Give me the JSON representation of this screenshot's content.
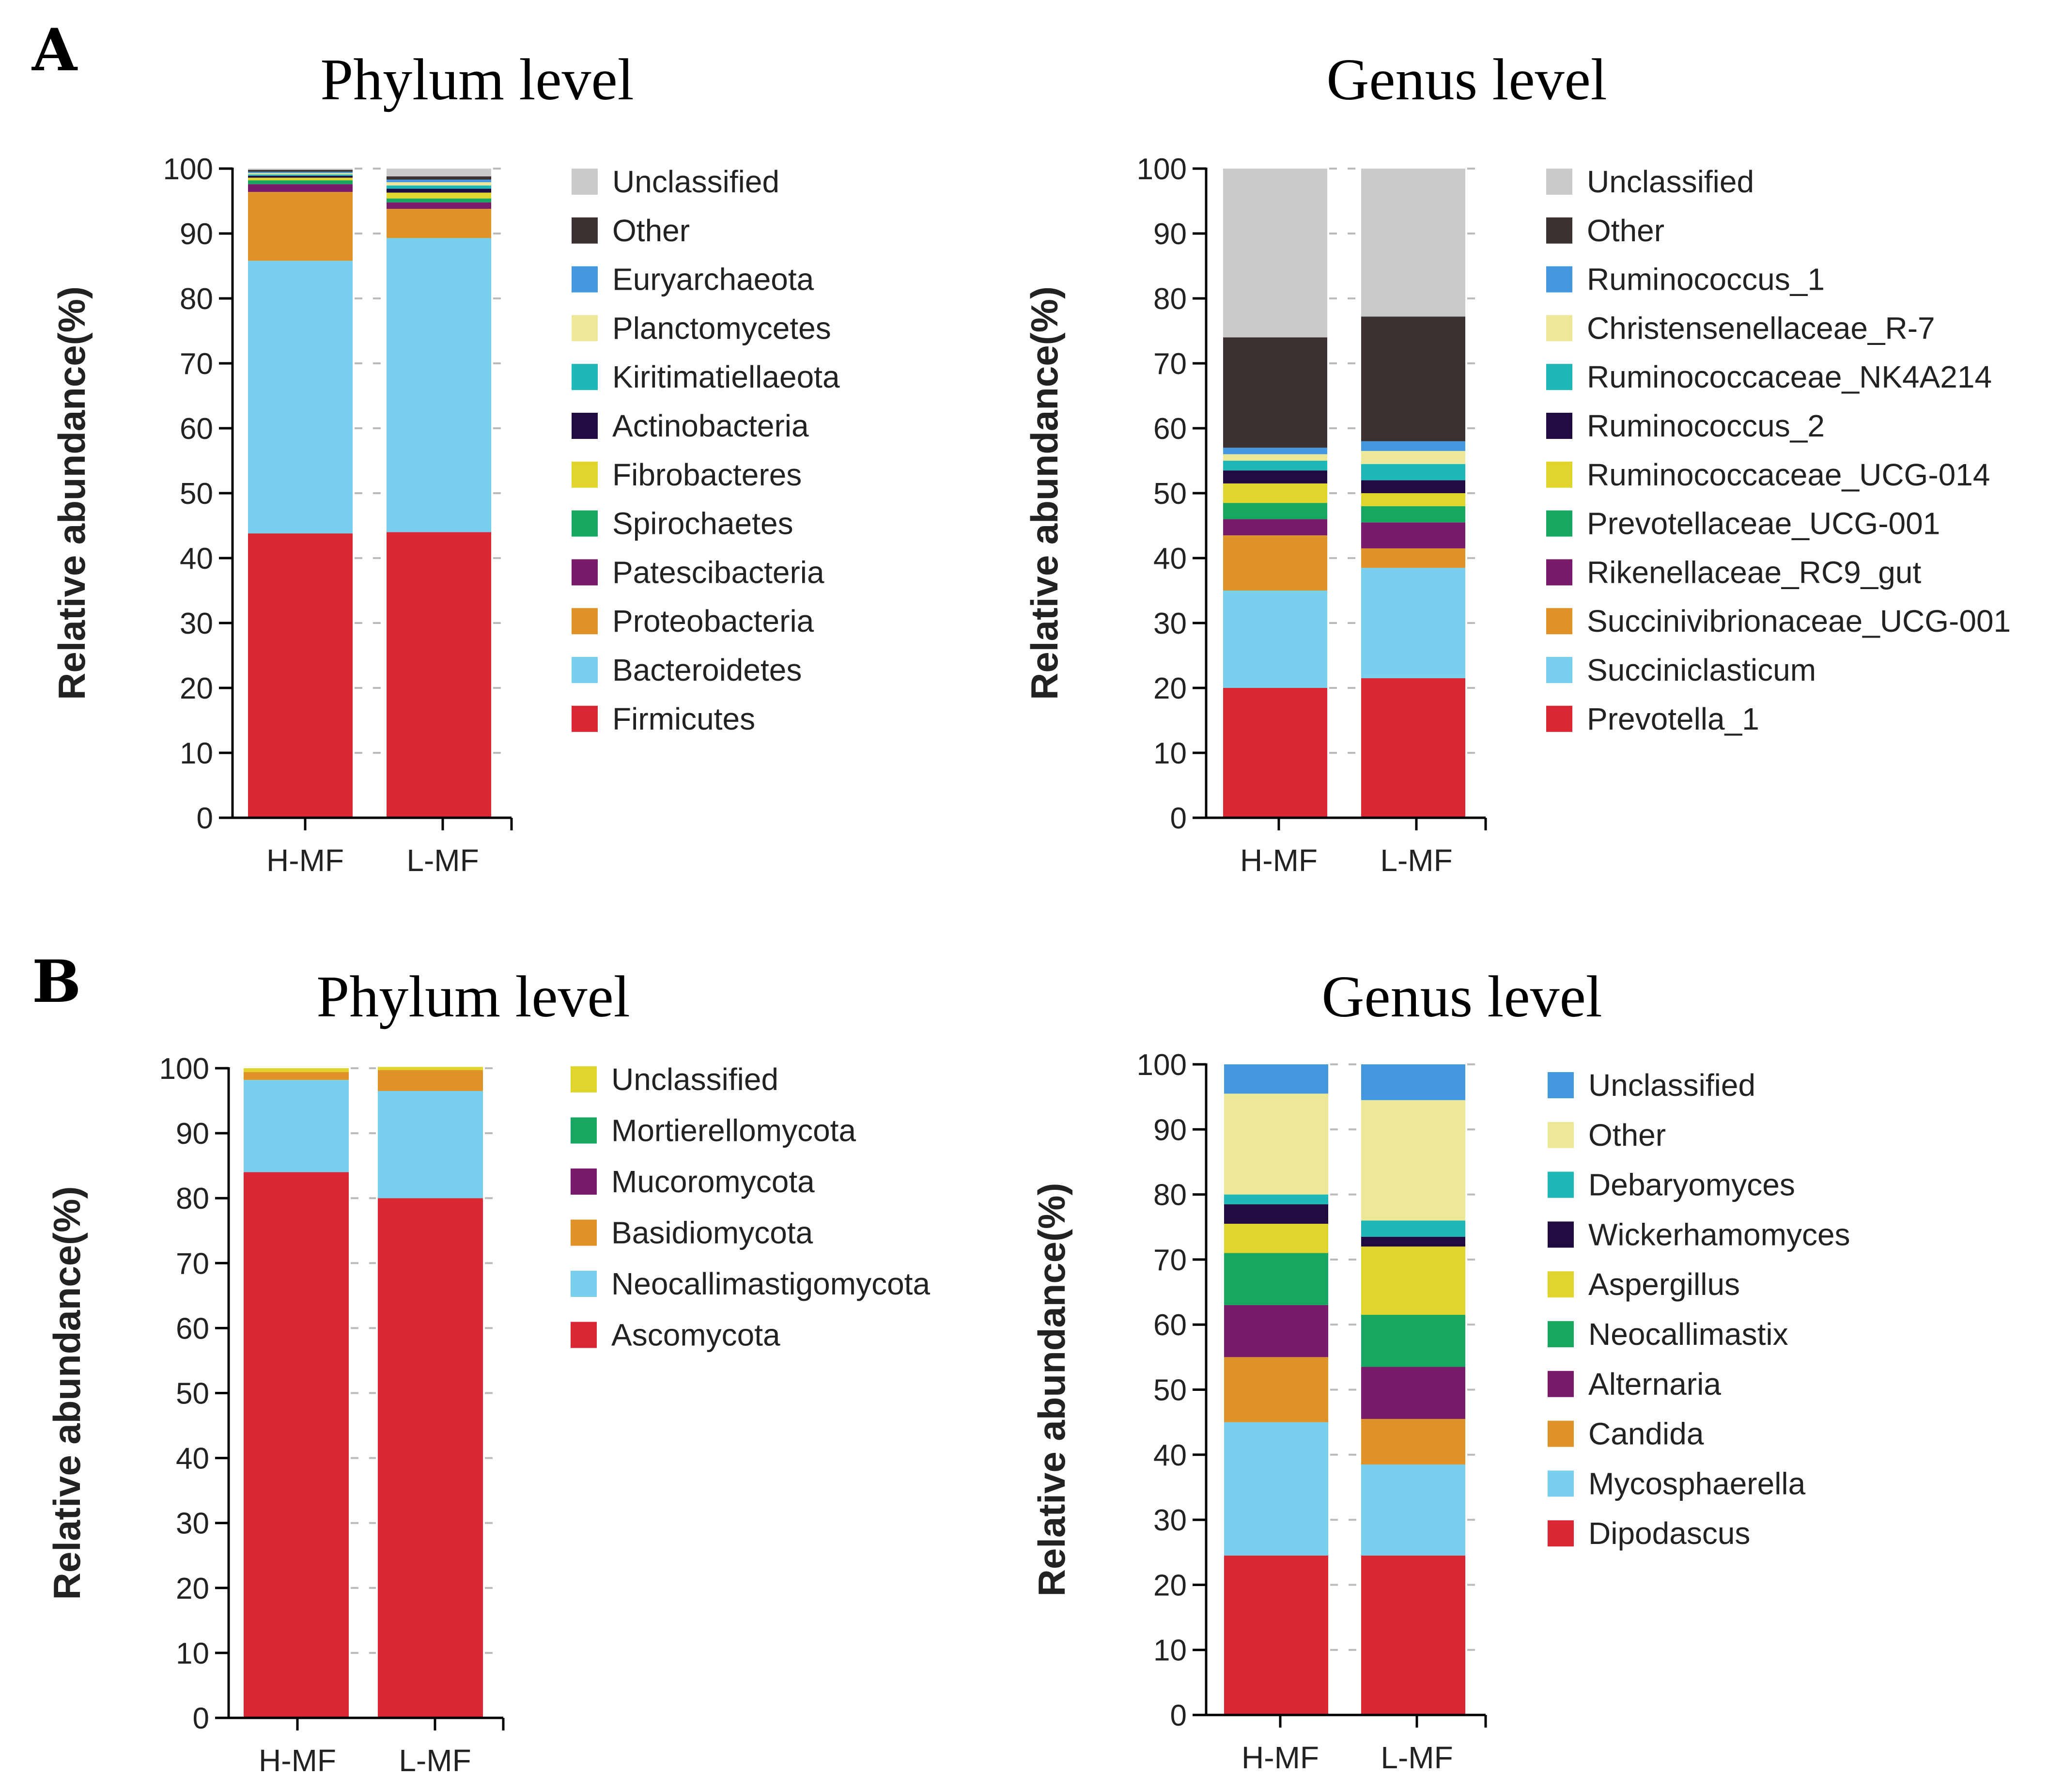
{
  "colors": {
    "unclassified_gray": "#c8c9c9",
    "other_dark": "#3b3130",
    "blue": "#4498df",
    "pale_yellow": "#ede898",
    "teal": "#1fb8b8",
    "dark_purple": "#200c41",
    "yellow": "#e0d42d",
    "green": "#18a760",
    "purple": "#7a1a6b",
    "orange": "#df9227",
    "light_blue": "#78d0ee",
    "red": "#d92833"
  },
  "chart_data": [
    {
      "id": "A-phylum",
      "panel_label": "A",
      "type": "bar",
      "stacked": true,
      "title": "Phylum level",
      "ylabel": "Relative abundance(%)",
      "ylim": [
        0,
        100
      ],
      "yticks": [
        "0",
        "10",
        "20",
        "30",
        "40",
        "50",
        "60",
        "70",
        "80",
        "90",
        "100"
      ],
      "categories": [
        "H-MF",
        "L-MF"
      ],
      "legend_position": "right",
      "series": [
        {
          "name": "Firmicutes",
          "color": "#d92833",
          "values": [
            43.8,
            44.0
          ]
        },
        {
          "name": "Bacteroidetes",
          "color": "#78d0ee",
          "values": [
            42.0,
            45.3
          ]
        },
        {
          "name": "Proteobacteria",
          "color": "#df9227",
          "values": [
            10.6,
            4.5
          ]
        },
        {
          "name": "Patescibacteria",
          "color": "#7a1a6b",
          "values": [
            1.2,
            1.0
          ]
        },
        {
          "name": "Spirochaetes",
          "color": "#18a760",
          "values": [
            0.6,
            0.6
          ]
        },
        {
          "name": "Fibrobacteres",
          "color": "#e0d42d",
          "values": [
            0.4,
            0.9
          ]
        },
        {
          "name": "Actinobacteria",
          "color": "#200c41",
          "values": [
            0.3,
            0.6
          ]
        },
        {
          "name": "Kiritimatiellaeota",
          "color": "#1fb8b8",
          "values": [
            0.2,
            0.5
          ]
        },
        {
          "name": "Planctomycetes",
          "color": "#ede898",
          "values": [
            0.2,
            0.5
          ]
        },
        {
          "name": "Euryarchaeota",
          "color": "#4498df",
          "values": [
            0.2,
            0.4
          ]
        },
        {
          "name": "Other",
          "color": "#3b3130",
          "values": [
            0.3,
            0.5
          ]
        },
        {
          "name": "Unclassified",
          "color": "#c8c9c9",
          "values": [
            0.2,
            1.2
          ]
        }
      ]
    },
    {
      "id": "A-genus",
      "panel_label": "",
      "type": "bar",
      "stacked": true,
      "title": "Genus level",
      "ylabel": "Relative abundance(%)",
      "ylim": [
        0,
        100
      ],
      "yticks": [
        "0",
        "10",
        "20",
        "30",
        "40",
        "50",
        "60",
        "70",
        "80",
        "90",
        "100"
      ],
      "categories": [
        "H-MF",
        "L-MF"
      ],
      "legend_position": "right",
      "series": [
        {
          "name": "Prevotella_1",
          "color": "#d92833",
          "values": [
            20.0,
            21.5
          ]
        },
        {
          "name": "Succiniclasticum",
          "color": "#78d0ee",
          "values": [
            15.0,
            17.0
          ]
        },
        {
          "name": "Succinivibrionaceae_UCG-001",
          "color": "#df9227",
          "values": [
            8.5,
            3.0
          ]
        },
        {
          "name": "Rikenellaceae_RC9_gut",
          "color": "#7a1a6b",
          "values": [
            2.5,
            4.0
          ]
        },
        {
          "name": "Prevotellaceae_UCG-001",
          "color": "#18a760",
          "values": [
            2.5,
            2.5
          ]
        },
        {
          "name": "Ruminococcaceae_UCG-014",
          "color": "#e0d42d",
          "values": [
            3.0,
            2.0
          ]
        },
        {
          "name": "Ruminococcus_2",
          "color": "#200c41",
          "values": [
            2.0,
            2.0
          ]
        },
        {
          "name": "Ruminococcaceae_NK4A214",
          "color": "#1fb8b8",
          "values": [
            1.5,
            2.5
          ]
        },
        {
          "name": "Christensenellaceae_R-7",
          "color": "#ede898",
          "values": [
            1.0,
            2.0
          ]
        },
        {
          "name": "Ruminococcus_1",
          "color": "#4498df",
          "values": [
            1.0,
            1.5
          ]
        },
        {
          "name": "Other",
          "color": "#3b3130",
          "values": [
            17.0,
            19.2
          ]
        },
        {
          "name": "Unclassified",
          "color": "#c8c9c9",
          "values": [
            26.0,
            22.8
          ]
        }
      ]
    },
    {
      "id": "B-phylum",
      "panel_label": "B",
      "type": "bar",
      "stacked": true,
      "title": "Phylum level",
      "ylabel": "Relative abundance(%)",
      "ylim": [
        0,
        100
      ],
      "yticks": [
        "0",
        "10",
        "20",
        "30",
        "40",
        "50",
        "60",
        "70",
        "80",
        "90",
        "100"
      ],
      "categories": [
        "H-MF",
        "L-MF"
      ],
      "legend_position": "right",
      "series": [
        {
          "name": "Ascomycota",
          "color": "#d92833",
          "values": [
            84.0,
            80.0
          ]
        },
        {
          "name": "Neocallimastigomycota",
          "color": "#78d0ee",
          "values": [
            14.2,
            16.5
          ]
        },
        {
          "name": "Basidiomycota",
          "color": "#df9227",
          "values": [
            1.2,
            3.2
          ]
        },
        {
          "name": "Mucoromycota",
          "color": "#7a1a6b",
          "values": [
            0.0,
            0.0
          ]
        },
        {
          "name": "Mortierellomycota",
          "color": "#18a760",
          "values": [
            0.0,
            0.0
          ]
        },
        {
          "name": "Unclassified",
          "color": "#e0d42d",
          "values": [
            0.6,
            0.5
          ]
        }
      ]
    },
    {
      "id": "B-genus",
      "panel_label": "",
      "type": "bar",
      "stacked": true,
      "title": "Genus level",
      "ylabel": "Relative abundance(%)",
      "ylim": [
        0,
        100
      ],
      "yticks": [
        "0",
        "10",
        "20",
        "30",
        "40",
        "50",
        "60",
        "70",
        "80",
        "90",
        "100"
      ],
      "categories": [
        "H-MF",
        "L-MF"
      ],
      "legend_position": "right",
      "series": [
        {
          "name": "Dipodascus",
          "color": "#d92833",
          "values": [
            24.5,
            24.5
          ]
        },
        {
          "name": "Mycosphaerella",
          "color": "#78d0ee",
          "values": [
            20.5,
            14.0
          ]
        },
        {
          "name": "Candida",
          "color": "#df9227",
          "values": [
            10.0,
            7.0
          ]
        },
        {
          "name": "Alternaria",
          "color": "#7a1a6b",
          "values": [
            8.0,
            8.0
          ]
        },
        {
          "name": "Neocallimastix",
          "color": "#18a760",
          "values": [
            8.0,
            8.0
          ]
        },
        {
          "name": "Aspergillus",
          "color": "#e0d42d",
          "values": [
            4.5,
            10.5
          ]
        },
        {
          "name": "Wickerhamomyces",
          "color": "#200c41",
          "values": [
            3.0,
            1.5
          ]
        },
        {
          "name": "Debaryomyces",
          "color": "#1fb8b8",
          "values": [
            1.5,
            2.5
          ]
        },
        {
          "name": "Other",
          "color": "#ede898",
          "values": [
            15.5,
            18.5
          ]
        },
        {
          "name": "Unclassified",
          "color": "#4498df",
          "values": [
            4.5,
            5.5
          ]
        }
      ]
    }
  ]
}
